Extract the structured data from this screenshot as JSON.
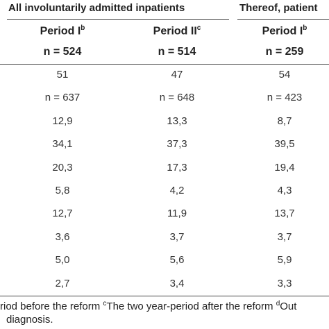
{
  "header": {
    "group1": "All involuntarily admitted inpatients",
    "group2": "Thereof, patient",
    "columns": [
      {
        "label": "Period I",
        "sup": "b",
        "n": "n = 524"
      },
      {
        "label": "Period II",
        "sup": "c",
        "n": "n = 514"
      },
      {
        "label": "Period I",
        "sup": "b",
        "n": "n = 259"
      }
    ]
  },
  "rows": [
    [
      "51",
      "47",
      "54"
    ],
    [
      "n = 637",
      "n = 648",
      "n = 423"
    ],
    [
      "12,9",
      "13,3",
      "8,7"
    ],
    [
      "34,1",
      "37,3",
      "39,5"
    ],
    [
      "20,3",
      "17,3",
      "19,4"
    ],
    [
      "5,8",
      "4,2",
      "4,3"
    ],
    [
      "12,7",
      "11,9",
      "13,7"
    ],
    [
      "3,6",
      "3,7",
      "3,7"
    ],
    [
      "5,0",
      "5,6",
      "5,9"
    ],
    [
      "2,7",
      "3,4",
      "3,3"
    ]
  ],
  "footnotes": {
    "line1_part1": "riod before the reform ",
    "sup_c": "c",
    "line1_part2": "The two year-period after the reform ",
    "sup_d": "d",
    "line1_part3": "Out",
    "line2": "diagnosis."
  }
}
